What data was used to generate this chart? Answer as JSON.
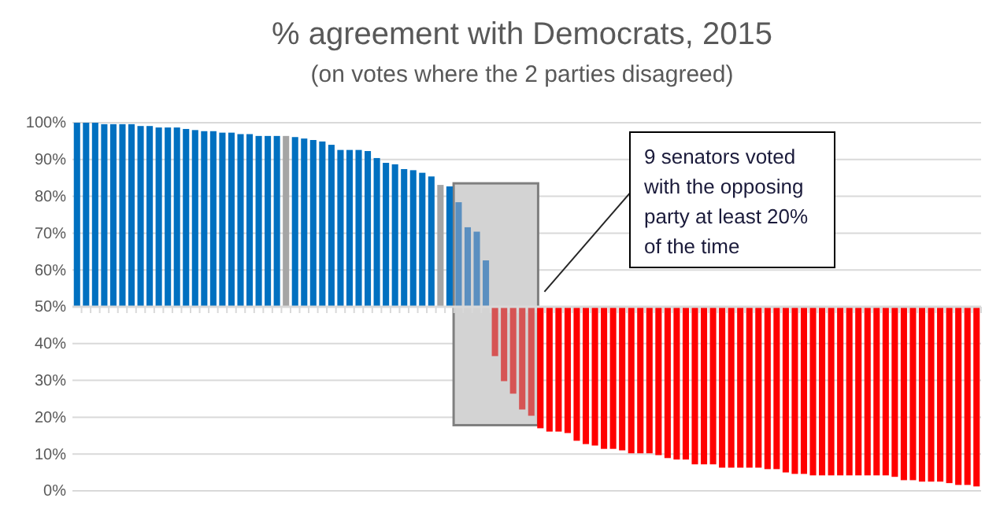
{
  "chart_data": {
    "type": "bar",
    "title": "% agreement with Democrats, 2015",
    "subtitle": "(on votes where the 2 parties disagreed)",
    "categories": [
      null,
      null,
      null,
      null,
      null,
      null,
      null,
      null,
      null,
      null,
      null,
      null,
      null,
      null,
      null,
      null,
      null,
      null,
      null,
      null,
      null,
      null,
      null,
      null,
      null,
      null,
      null,
      null,
      null,
      null,
      null,
      null,
      null,
      null,
      null,
      null,
      null,
      null,
      null,
      null,
      null,
      null,
      null,
      null,
      null,
      null,
      null,
      null,
      null,
      null,
      null,
      null,
      null,
      null,
      null,
      null,
      null,
      null,
      null,
      null,
      null,
      null,
      null,
      null,
      null,
      null,
      null,
      null,
      null,
      null,
      null,
      null,
      null,
      null,
      null,
      null,
      null,
      null,
      null,
      null,
      null,
      null,
      null,
      null,
      null,
      null,
      null,
      null,
      null,
      null,
      null,
      null,
      null,
      null,
      null,
      null,
      null,
      null,
      null,
      null
    ],
    "base": [
      50,
      50,
      50,
      50,
      50,
      50,
      50,
      50,
      50,
      50,
      50,
      50,
      50,
      50,
      50,
      50,
      50,
      50,
      50,
      50,
      50,
      50,
      50,
      50,
      50,
      50,
      50,
      50,
      50,
      50,
      50,
      50,
      50,
      50,
      50,
      50,
      50,
      50,
      50,
      50,
      50,
      50,
      50,
      50,
      50,
      50,
      50,
      50,
      50,
      50,
      50,
      50,
      50,
      50,
      50,
      50,
      50,
      50,
      50,
      50,
      50,
      50,
      50,
      50,
      50,
      50,
      50,
      50,
      50,
      50,
      50,
      50,
      50,
      50,
      50,
      50,
      50,
      50,
      50,
      50,
      50,
      50,
      50,
      50,
      50,
      50,
      50,
      50,
      50,
      50,
      50,
      50,
      50,
      50,
      50,
      50,
      50,
      50,
      50,
      50
    ],
    "values": [
      50,
      50,
      50,
      49.6,
      49.6,
      49.6,
      49.6,
      49.1,
      49.1,
      48.7,
      48.7,
      48.7,
      48.3,
      48,
      47.7,
      47.7,
      47.3,
      47.3,
      46.9,
      46.9,
      46.4,
      46.4,
      46.4,
      46.4,
      46.1,
      45.7,
      45.3,
      44.9,
      44,
      42.6,
      42.6,
      42.6,
      42.3,
      40.4,
      39.1,
      38.7,
      37.4,
      37.1,
      36.4,
      35.4,
      33.1,
      32.7,
      28.4,
      21.6,
      20.4,
      12.6,
      -13.4,
      -20.2,
      -23.6,
      -27.9,
      -29.6,
      -33,
      -33.9,
      -33.9,
      -34.3,
      -36.4,
      -37.3,
      -37.7,
      -38.6,
      -38.6,
      -39,
      -39.8,
      -39.8,
      -39.8,
      -40.3,
      -41.1,
      -41.5,
      -41.5,
      -42.8,
      -42.8,
      -42.8,
      -43.7,
      -43.7,
      -43.7,
      -43.7,
      -43.7,
      -44.1,
      -44.1,
      -45,
      -45.4,
      -45.4,
      -45.8,
      -45.8,
      -45.8,
      -45.8,
      -45.8,
      -45.8,
      -45.8,
      -45.8,
      -45.8,
      -46.2,
      -47.1,
      -47.1,
      -47.5,
      -47.5,
      -47.5,
      -47.9,
      -48.4,
      -48.4,
      -48.8
    ],
    "colors": [
      "#0070c0",
      "#0070c0",
      "#0070c0",
      "#0070c0",
      "#0070c0",
      "#0070c0",
      "#0070c0",
      "#0070c0",
      "#0070c0",
      "#0070c0",
      "#0070c0",
      "#0070c0",
      "#0070c0",
      "#0070c0",
      "#0070c0",
      "#0070c0",
      "#0070c0",
      "#0070c0",
      "#0070c0",
      "#0070c0",
      "#0070c0",
      "#0070c0",
      "#0070c0",
      "#a5a5a5",
      "#0070c0",
      "#0070c0",
      "#0070c0",
      "#0070c0",
      "#0070c0",
      "#0070c0",
      "#0070c0",
      "#0070c0",
      "#0070c0",
      "#0070c0",
      "#0070c0",
      "#0070c0",
      "#0070c0",
      "#0070c0",
      "#0070c0",
      "#0070c0",
      "#a5a5a5",
      "#0070c0",
      "#5a8fc0",
      "#5a8fc0",
      "#5a8fc0",
      "#5a8fc0",
      "#d65454",
      "#d65454",
      "#d65454",
      "#d65454",
      "#d65454",
      "#ff0000",
      "#ff0000",
      "#ff0000",
      "#ff0000",
      "#ff0000",
      "#ff0000",
      "#ff0000",
      "#ff0000",
      "#ff0000",
      "#ff0000",
      "#ff0000",
      "#ff0000",
      "#ff0000",
      "#ff0000",
      "#ff0000",
      "#ff0000",
      "#ff0000",
      "#ff0000",
      "#ff0000",
      "#ff0000",
      "#ff0000",
      "#ff0000",
      "#ff0000",
      "#ff0000",
      "#ff0000",
      "#ff0000",
      "#ff0000",
      "#ff0000",
      "#ff0000",
      "#ff0000",
      "#ff0000",
      "#ff0000",
      "#ff0000",
      "#ff0000",
      "#ff0000",
      "#ff0000",
      "#ff0000",
      "#ff0000",
      "#ff0000",
      "#ff0000",
      "#ff0000",
      "#ff0000",
      "#ff0000",
      "#ff0000",
      "#ff0000",
      "#ff0000",
      "#ff0000",
      "#ff0000",
      "#ff0000"
    ],
    "ylim": [
      0,
      100
    ],
    "yticks": [
      {
        "value": 0,
        "label": "0%"
      },
      {
        "value": 10,
        "label": "10%"
      },
      {
        "value": 20,
        "label": "20%"
      },
      {
        "value": 30,
        "label": "30%"
      },
      {
        "value": 40,
        "label": "40%"
      },
      {
        "value": 50,
        "label": "50%"
      },
      {
        "value": 60,
        "label": "60%"
      },
      {
        "value": 70,
        "label": "70%"
      },
      {
        "value": 80,
        "label": "80%"
      },
      {
        "value": 90,
        "label": "90%"
      },
      {
        "value": 100,
        "label": "100%"
      }
    ],
    "grid": "y",
    "ref_lines": [
      {
        "axis": "y",
        "value": 50,
        "color": "#d9d9d9"
      }
    ],
    "annotations": [
      "9 senators voted with the opposing party at least 20% of the time"
    ]
  }
}
